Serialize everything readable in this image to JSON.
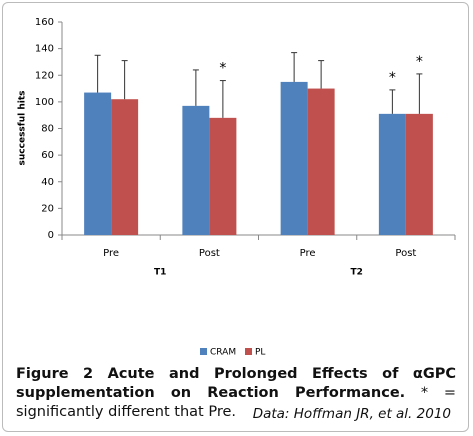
{
  "chart_data": {
    "type": "bar",
    "y_label": "successful hits",
    "categories": [
      "Pre",
      "Post",
      "Pre",
      "Post"
    ],
    "groups": [
      "T1",
      "T2"
    ],
    "series": [
      {
        "name": "CRAM",
        "color": "#4f81bd",
        "values": [
          107,
          97,
          115,
          91
        ],
        "errors": [
          28,
          27,
          22,
          18
        ],
        "marks": [
          null,
          null,
          null,
          "*"
        ]
      },
      {
        "name": "PL",
        "color": "#c0504d",
        "values": [
          102,
          88,
          110,
          91
        ],
        "errors": [
          29,
          28,
          21,
          30
        ],
        "marks": [
          null,
          "*",
          null,
          "*"
        ]
      }
    ],
    "ylim": [
      0,
      160
    ],
    "yticks": [
      0,
      20,
      40,
      60,
      80,
      100,
      120,
      140,
      160
    ],
    "grid": false,
    "legend": "bottom"
  },
  "caption": {
    "bold": "Figure 2 Acute and Prolonged Effects of αGPC supplementation on Reaction Performance.",
    "text": " * = significantly different that Pre."
  },
  "source": "Data: Hoffman JR, et al. 2010"
}
